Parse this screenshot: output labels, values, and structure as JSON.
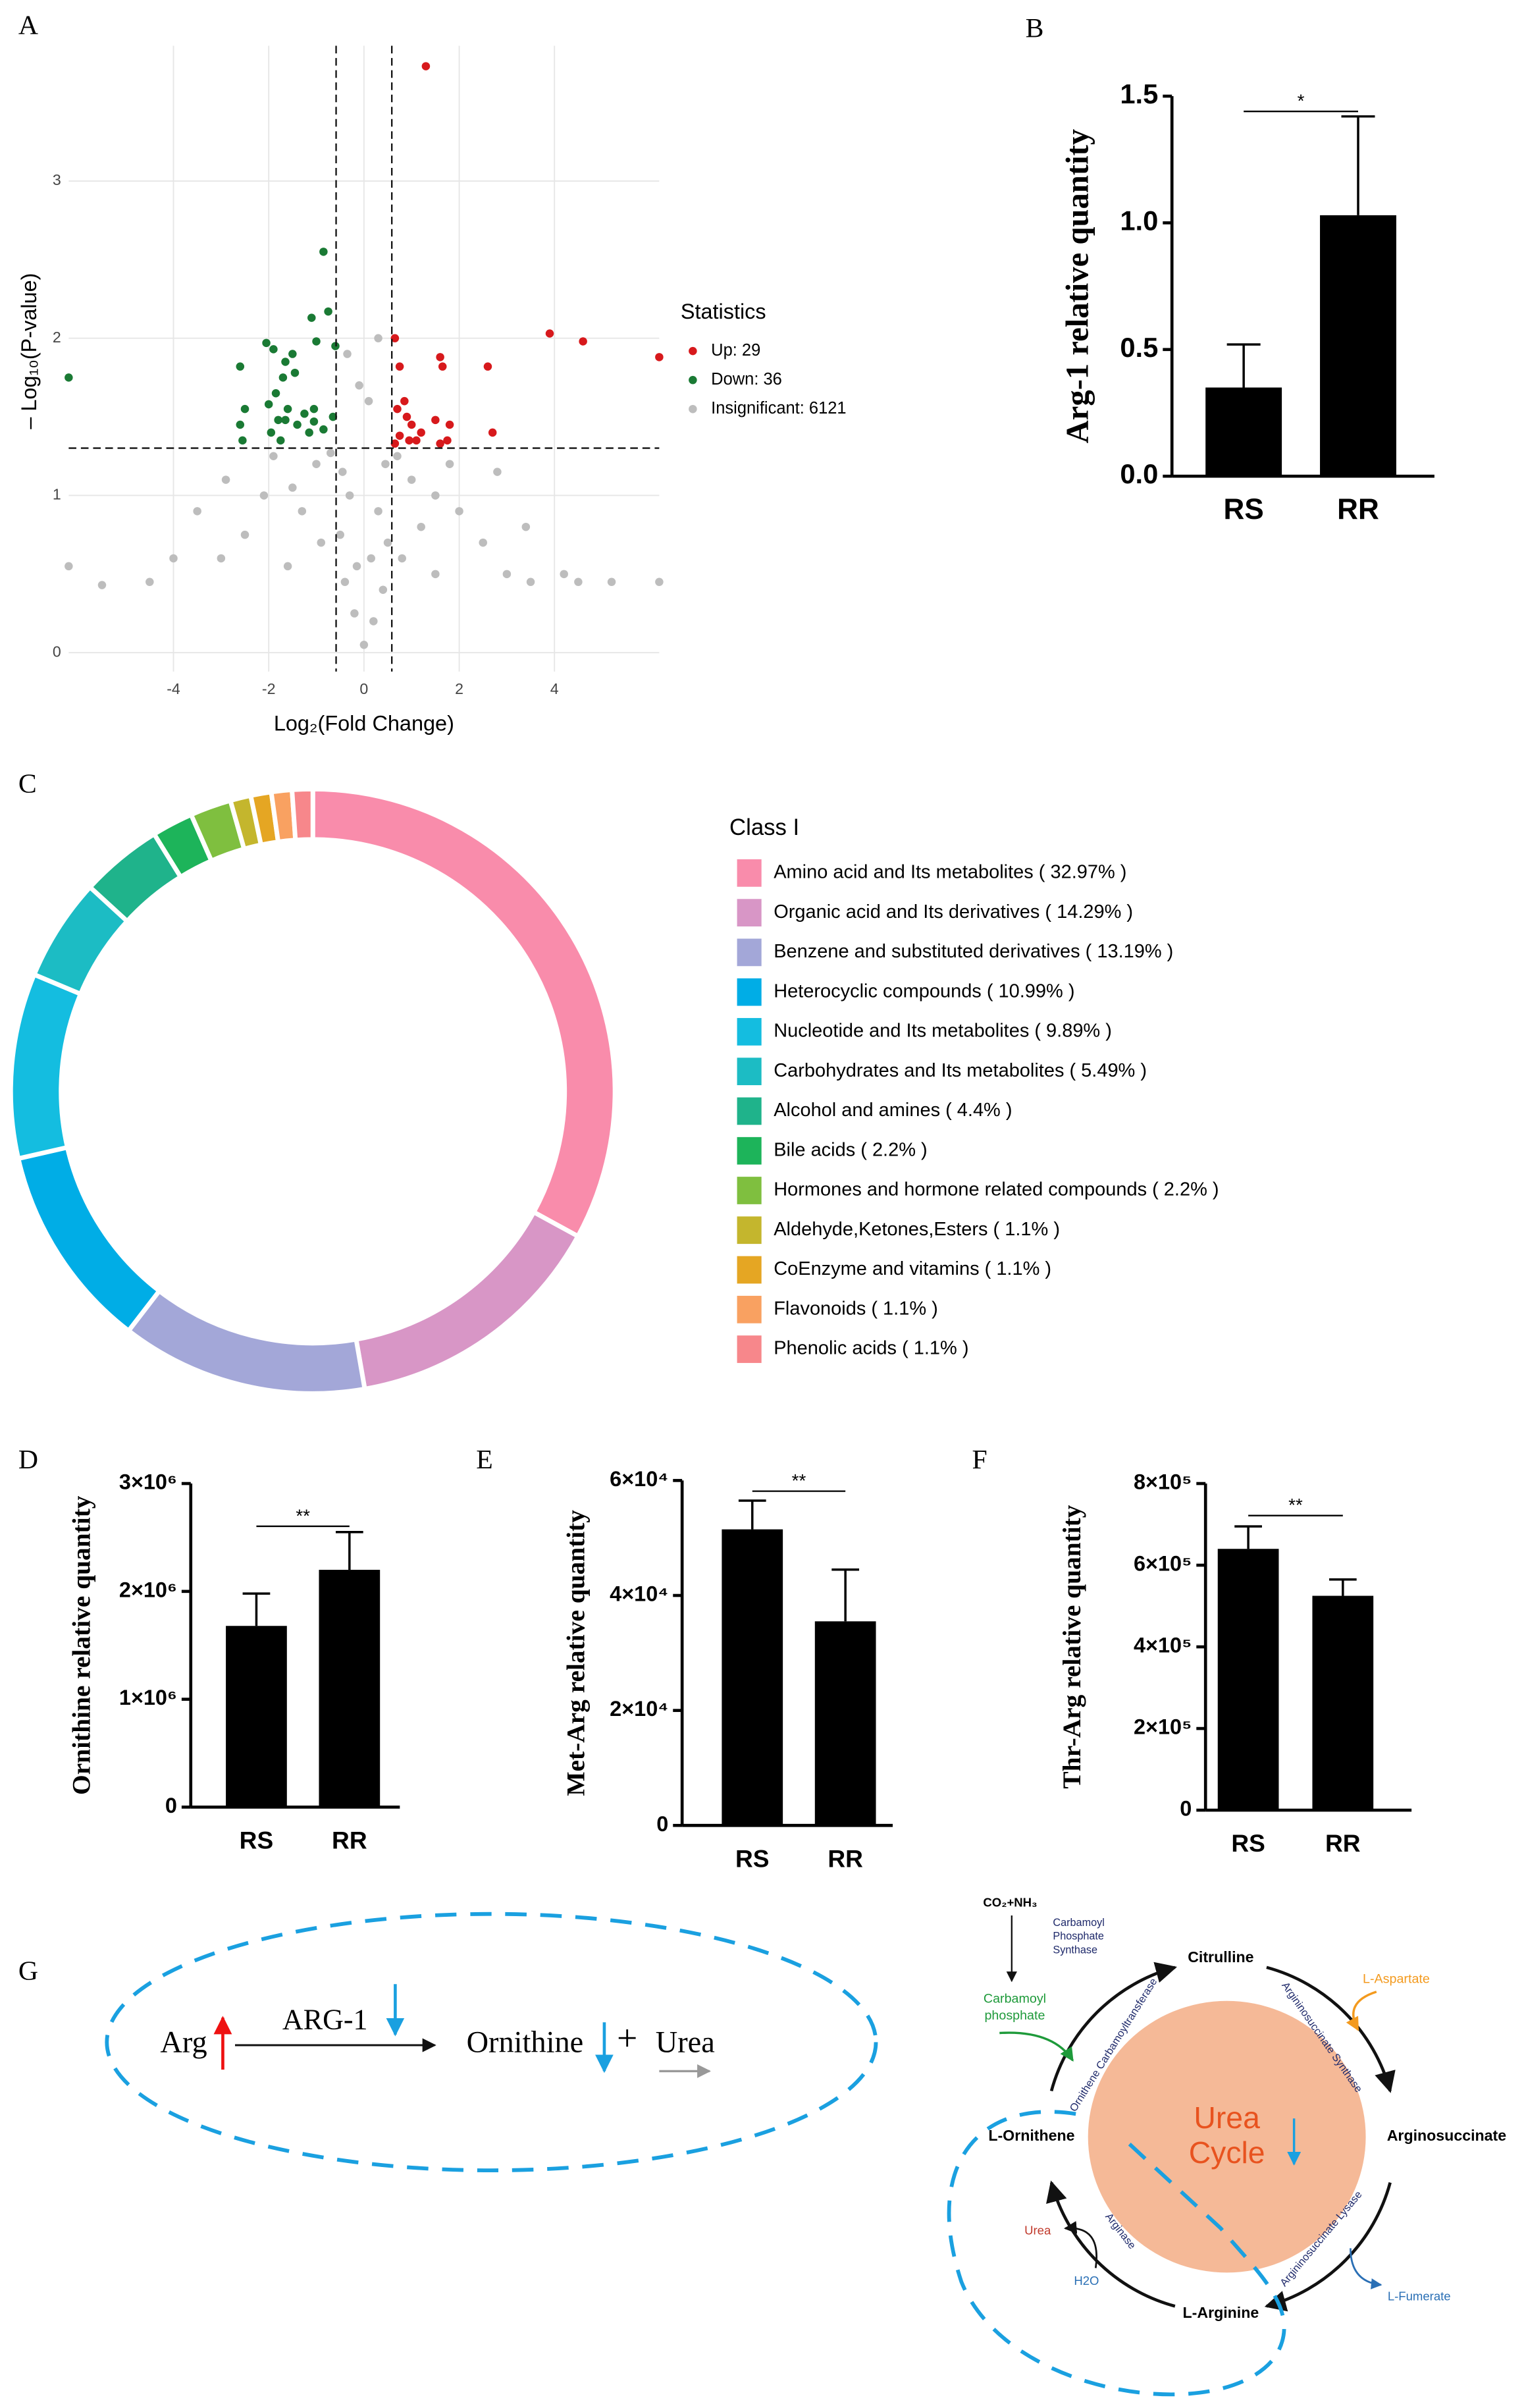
{
  "chart_data": [
    {
      "type": "scatter",
      "panel": "A",
      "xlabel": "Log₂(Fold Change)",
      "ylabel": "– Log₁₀(P-value)",
      "xlim": [
        -6.2,
        6.2
      ],
      "ylim": [
        -0.12,
        3.86
      ],
      "xticks": [
        -4,
        -2,
        0,
        2,
        4
      ],
      "yticks": [
        0,
        1,
        2,
        3
      ],
      "grid": true,
      "thresholds": {
        "x": [
          -0.585,
          0.585
        ],
        "y": 1.301
      },
      "legend_title": "Statistics",
      "series": [
        {
          "name": "Up: 29",
          "color": "#d7191c",
          "x": [
            1.3,
            0.65,
            0.75,
            1.6,
            1.65,
            2.6,
            3.9,
            4.6,
            6.2,
            0.7,
            0.85,
            0.9,
            1.0,
            0.75,
            0.95,
            1.1,
            1.5,
            1.8,
            1.6,
            1.75,
            2.7,
            0.65,
            1.2
          ],
          "y": [
            3.73,
            2.0,
            1.82,
            1.88,
            1.82,
            1.82,
            2.03,
            1.98,
            1.88,
            1.55,
            1.6,
            1.5,
            1.45,
            1.38,
            1.35,
            1.35,
            1.48,
            1.45,
            1.33,
            1.35,
            1.4,
            1.33,
            1.4
          ]
        },
        {
          "name": "Down: 36",
          "color": "#1a7a34",
          "x": [
            -0.85,
            -0.75,
            -1.1,
            -1.9,
            -2.05,
            -2.6,
            -1.5,
            -1.65,
            -1.45,
            -1.0,
            -0.6,
            -1.85,
            -1.7,
            -1.6,
            -1.65,
            -2.5,
            -2.6,
            -2.0,
            -1.8,
            -1.4,
            -1.25,
            -1.05,
            -0.85,
            -1.05,
            -0.65,
            -1.95,
            -1.15,
            -1.75,
            -6.2,
            -2.55
          ],
          "y": [
            2.55,
            2.17,
            2.13,
            1.93,
            1.97,
            1.82,
            1.9,
            1.85,
            1.78,
            1.98,
            1.95,
            1.65,
            1.75,
            1.55,
            1.48,
            1.55,
            1.45,
            1.58,
            1.48,
            1.45,
            1.52,
            1.47,
            1.42,
            1.55,
            1.5,
            1.4,
            1.4,
            1.35,
            1.75,
            1.35
          ]
        },
        {
          "name": "Insignificant: 6121",
          "color": "#bdbdbd",
          "x": [
            0,
            0.2,
            -0.2,
            0.4,
            -0.4,
            0.5,
            -0.5,
            0.3,
            -0.3,
            0.45,
            -0.45,
            0.1,
            -0.1,
            0.3,
            -0.35,
            0.8,
            -0.9,
            1.2,
            -1.3,
            1.5,
            -1.6,
            2.0,
            -2.1,
            2.5,
            -2.5,
            3.0,
            -3.0,
            3.5,
            4.5,
            5.2,
            -4.0,
            -5.5,
            -6.2,
            6.2,
            1.0,
            -1.0,
            0.7,
            -0.7,
            2.8,
            -2.9,
            -3.5,
            3.4,
            1.8,
            -1.9,
            0.15,
            -0.15,
            1.5,
            -1.5,
            4.2,
            -4.5
          ],
          "y": [
            0.05,
            0.2,
            0.25,
            0.4,
            0.45,
            0.7,
            0.75,
            0.9,
            1.0,
            1.2,
            1.15,
            1.6,
            1.7,
            2.0,
            1.9,
            0.6,
            0.7,
            0.8,
            0.9,
            0.5,
            0.55,
            0.9,
            1.0,
            0.7,
            0.75,
            0.5,
            0.6,
            0.45,
            0.45,
            0.45,
            0.6,
            0.43,
            0.55,
            0.45,
            1.1,
            1.2,
            1.25,
            1.27,
            1.15,
            1.1,
            0.9,
            0.8,
            1.2,
            1.25,
            0.6,
            0.55,
            1.0,
            1.05,
            0.5,
            0.45
          ]
        }
      ]
    },
    {
      "type": "bar",
      "panel": "B",
      "ylabel": "Arg-1 relative quantity",
      "categories": [
        "RS",
        "RR"
      ],
      "values": [
        0.35,
        1.03
      ],
      "errors": [
        0.17,
        0.39
      ],
      "color": "#000000",
      "significance": "*",
      "ylim": [
        0,
        1.5
      ],
      "yticks": [
        {
          "value": 0,
          "label": "0.0"
        },
        0.5,
        {
          "value": 1,
          "label": "1.0"
        },
        1.5
      ]
    },
    {
      "type": "pie",
      "panel": "C",
      "legend_title": "Class I",
      "categories": [
        "Amino acid and Its metabolites ( 32.97% )",
        "Organic acid and Its derivatives ( 14.29% )",
        "Benzene and substituted derivatives ( 13.19% )",
        "Heterocyclic compounds ( 10.99% )",
        "Nucleotide and Its metabolites ( 9.89% )",
        "Carbohydrates and Its metabolites ( 5.49% )",
        "Alcohol and amines ( 4.4% )",
        "Bile acids ( 2.2% )",
        "Hormones and hormone related compounds ( 2.2% )",
        "Aldehyde,Ketones,Esters ( 1.1% )",
        "CoEnzyme and vitamins ( 1.1% )",
        "Flavonoids ( 1.1% )",
        "Phenolic acids ( 1.1% )"
      ],
      "values": [
        32.97,
        14.29,
        13.19,
        10.99,
        9.89,
        5.49,
        4.4,
        2.2,
        2.2,
        1.1,
        1.1,
        1.1,
        1.1
      ],
      "colors": [
        "#f98cab",
        "#d896c6",
        "#a3a7d8",
        "#00ade6",
        "#14bde0",
        "#1cbcc4",
        "#1fb38b",
        "#1db45a",
        "#7fbf3f",
        "#c4b62d",
        "#e5a623",
        "#f9a161",
        "#f7878b"
      ]
    },
    {
      "type": "bar",
      "panel": "D",
      "ylabel": "Ornithine relative quantity",
      "categories": [
        "RS",
        "RR"
      ],
      "values": [
        1680000,
        2200000
      ],
      "errors": [
        300000,
        350000
      ],
      "color": "#000000",
      "significance": "**",
      "ylim": [
        0,
        3000000
      ],
      "yticks": [
        0,
        {
          "value": 1000000,
          "label": "1×10⁶"
        },
        {
          "value": 2000000,
          "label": "2×10⁶"
        },
        {
          "value": 3000000,
          "label": "3×10⁶"
        }
      ]
    },
    {
      "type": "bar",
      "panel": "E",
      "ylabel": "Met-Arg relative quantity",
      "categories": [
        "RS",
        "RR"
      ],
      "values": [
        51500,
        35500
      ],
      "errors": [
        5000,
        9000
      ],
      "color": "#000000",
      "significance": "**",
      "ylim": [
        0,
        60000
      ],
      "yticks": [
        0,
        {
          "value": 20000,
          "label": "2×10⁴"
        },
        {
          "value": 40000,
          "label": "4×10⁴"
        },
        {
          "value": 60000,
          "label": "6×10⁴"
        }
      ]
    },
    {
      "type": "bar",
      "panel": "F",
      "ylabel": "Thr-Arg relative quantity",
      "categories": [
        "RS",
        "RR"
      ],
      "values": [
        640000,
        525000
      ],
      "errors": [
        55000,
        40000
      ],
      "color": "#000000",
      "significance": "**",
      "ylim": [
        0,
        800000
      ],
      "yticks": [
        0,
        {
          "value": 200000,
          "label": "2×10⁵"
        },
        {
          "value": 400000,
          "label": "4×10⁵"
        },
        {
          "value": 600000,
          "label": "6×10⁵"
        },
        {
          "value": 800000,
          "label": "8×10⁵"
        }
      ]
    }
  ],
  "diagram": {
    "panel": "G",
    "left": {
      "substrate": "Arg",
      "enzyme": "ARG-1",
      "product": "Ornithine",
      "plus": "+",
      "urea": "Urea"
    },
    "cycle": {
      "inputs": "CO₂+NH₃",
      "synthase": [
        "Carbamoyl",
        "Phosphate",
        "Synthase"
      ],
      "carbamoyl": [
        "Carbamoyl",
        "phosphate"
      ],
      "citrulline": "Citrulline",
      "aspartate": "L-Aspartate",
      "transferase": "Ornithene Carbamoyltransferase",
      "as_synthase": "Argininosuccinate Synthase",
      "argininosuccinate": "Arginosuccinate",
      "ornithine": "L-Ornithene",
      "center": [
        "Urea",
        "Cycle"
      ],
      "arginase": "Arginase",
      "lysase": "Argininosuccinate Lysase",
      "urea": "Urea",
      "water": "H2O",
      "arginine": "L-Arginine",
      "fumarate": "L-Fumerate"
    }
  }
}
